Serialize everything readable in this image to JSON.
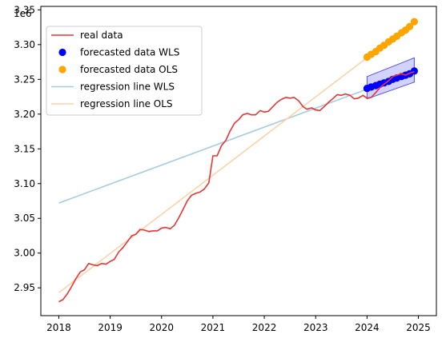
{
  "chart_data": {
    "type": "line",
    "title": "",
    "xlabel": "",
    "ylabel": "",
    "y_offset_label": "1e6",
    "xlim": [
      2017.65,
      2025.35
    ],
    "ylim": [
      2.91,
      3.355
    ],
    "grid": false,
    "legend_position": "upper-left",
    "x_ticks": [
      2018,
      2019,
      2020,
      2021,
      2022,
      2023,
      2024,
      2025
    ],
    "x_tick_labels": [
      "2018",
      "2019",
      "2020",
      "2021",
      "2022",
      "2023",
      "2024",
      "2025"
    ],
    "y_ticks": [
      2.95,
      3.0,
      3.05,
      3.1,
      3.15,
      3.2,
      3.25,
      3.3,
      3.35
    ],
    "y_tick_labels": [
      "2.95",
      "3.00",
      "3.05",
      "3.10",
      "3.15",
      "3.20",
      "3.25",
      "3.30",
      "3.35"
    ],
    "colors": {
      "real": "#ee3333",
      "wls_points": "#0000ff",
      "ols_points": "#ffa500",
      "wls_line": "#a6cde3",
      "ols_line": "#ffd2a8",
      "band_fill": "#4c4cf0",
      "band_edge": "#5050ff"
    },
    "series": [
      {
        "name": "real data",
        "kind": "line",
        "x": [
          2018.0,
          2018.08,
          2018.17,
          2018.25,
          2018.33,
          2018.42,
          2018.5,
          2018.58,
          2018.67,
          2018.75,
          2018.83,
          2018.92,
          2019.0,
          2019.08,
          2019.17,
          2019.25,
          2019.33,
          2019.42,
          2019.5,
          2019.58,
          2019.67,
          2019.75,
          2019.83,
          2019.92,
          2020.0,
          2020.08,
          2020.17,
          2020.25,
          2020.33,
          2020.42,
          2020.5,
          2020.58,
          2020.67,
          2020.75,
          2020.83,
          2020.92,
          2021.0,
          2021.08,
          2021.17,
          2021.25,
          2021.33,
          2021.42,
          2021.5,
          2021.58,
          2021.67,
          2021.75,
          2021.83,
          2021.92,
          2022.0,
          2022.08,
          2022.17,
          2022.25,
          2022.33,
          2022.42,
          2022.5,
          2022.58,
          2022.67,
          2022.75,
          2022.83,
          2022.92,
          2023.0,
          2023.08,
          2023.17,
          2023.25,
          2023.33,
          2023.42,
          2023.5,
          2023.58,
          2023.67,
          2023.75,
          2023.83,
          2023.92,
          2024.0,
          2024.08,
          2024.17,
          2024.25,
          2024.33,
          2024.42,
          2024.5,
          2024.58,
          2024.67,
          2024.75,
          2024.83,
          2024.92
        ],
        "y": [
          2.93,
          2.933,
          2.942,
          2.952,
          2.963,
          2.973,
          2.976,
          2.985,
          2.983,
          2.982,
          2.985,
          2.984,
          2.988,
          2.991,
          3.002,
          3.008,
          3.016,
          3.025,
          3.027,
          3.034,
          3.033,
          3.031,
          3.032,
          3.032,
          3.036,
          3.037,
          3.035,
          3.04,
          3.05,
          3.063,
          3.075,
          3.083,
          3.086,
          3.088,
          3.092,
          3.101,
          3.14,
          3.14,
          3.155,
          3.162,
          3.175,
          3.187,
          3.192,
          3.199,
          3.201,
          3.199,
          3.199,
          3.205,
          3.203,
          3.204,
          3.211,
          3.217,
          3.221,
          3.224,
          3.223,
          3.224,
          3.219,
          3.211,
          3.207,
          3.209,
          3.206,
          3.205,
          3.211,
          3.217,
          3.222,
          3.228,
          3.227,
          3.229,
          3.227,
          3.222,
          3.223,
          3.227,
          3.223,
          3.224,
          3.231,
          3.238,
          3.243,
          3.248,
          3.254,
          3.256,
          3.258,
          3.256,
          3.259,
          3.261
        ]
      },
      {
        "name": "forecasted data WLS",
        "kind": "points",
        "x": [
          2024.0,
          2024.08,
          2024.17,
          2024.25,
          2024.33,
          2024.42,
          2024.5,
          2024.58,
          2024.67,
          2024.75,
          2024.83,
          2024.92
        ],
        "y": [
          3.237,
          3.239,
          3.241,
          3.243,
          3.245,
          3.247,
          3.25,
          3.252,
          3.254,
          3.256,
          3.258,
          3.262
        ]
      },
      {
        "name": "forecasted data OLS",
        "kind": "points",
        "x": [
          2024.0,
          2024.08,
          2024.17,
          2024.25,
          2024.33,
          2024.42,
          2024.5,
          2024.58,
          2024.67,
          2024.75,
          2024.83,
          2024.92
        ],
        "y": [
          3.282,
          3.286,
          3.29,
          3.295,
          3.299,
          3.304,
          3.308,
          3.312,
          3.317,
          3.321,
          3.326,
          3.333
        ]
      },
      {
        "name": "regression line WLS",
        "kind": "line",
        "x": [
          2018.0,
          2024.92
        ],
        "y": [
          3.072,
          3.261
        ]
      },
      {
        "name": "regression line OLS",
        "kind": "line",
        "x": [
          2018.0,
          2024.92
        ],
        "y": [
          2.943,
          3.333
        ]
      }
    ],
    "wls_interval": {
      "x": [
        2024.0,
        2024.92
      ],
      "upper": [
        3.254,
        3.281
      ],
      "lower": [
        3.222,
        3.246
      ]
    }
  }
}
